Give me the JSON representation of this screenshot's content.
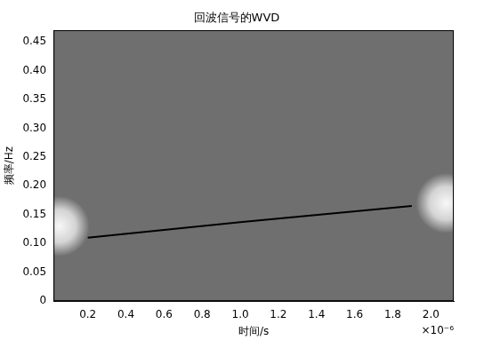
{
  "chart_data": {
    "type": "line",
    "title": "回波信号的WVD",
    "x_label": "时间/s",
    "y_label": "频率/Hz",
    "annotations": [
      "×10⁻⁶"
    ],
    "xlim": [
      0.02,
      2.12
    ],
    "xticks": [
      0.2,
      0.4,
      0.6,
      0.8,
      {
        "value": 1,
        "label": "1.0"
      },
      1.2,
      1.4,
      1.6,
      1.8,
      {
        "value": 2,
        "label": "2.0"
      }
    ],
    "ylim": [
      0,
      0.47
    ],
    "yticks": [
      0,
      0.05,
      {
        "value": 0.1,
        "label": "0.10"
      },
      0.15,
      {
        "value": 0.2,
        "label": "0.20"
      },
      0.25,
      {
        "value": 0.3,
        "label": "0.30"
      },
      0.35,
      {
        "value": 0.4,
        "label": "0.40"
      },
      0.45
    ],
    "grid": false,
    "series": [
      {
        "type": "line",
        "color": "#000000",
        "x": [
          0.2,
          1.0,
          1.9
        ],
        "values": [
          0.11,
          0.137,
          0.165
        ]
      },
      {
        "type": "bubble",
        "color": "#ffffff",
        "x": [
          0.05,
          2.08
        ],
        "values": [
          0.13,
          0.17
        ],
        "sizes": [
          34,
          34
        ]
      }
    ]
  }
}
